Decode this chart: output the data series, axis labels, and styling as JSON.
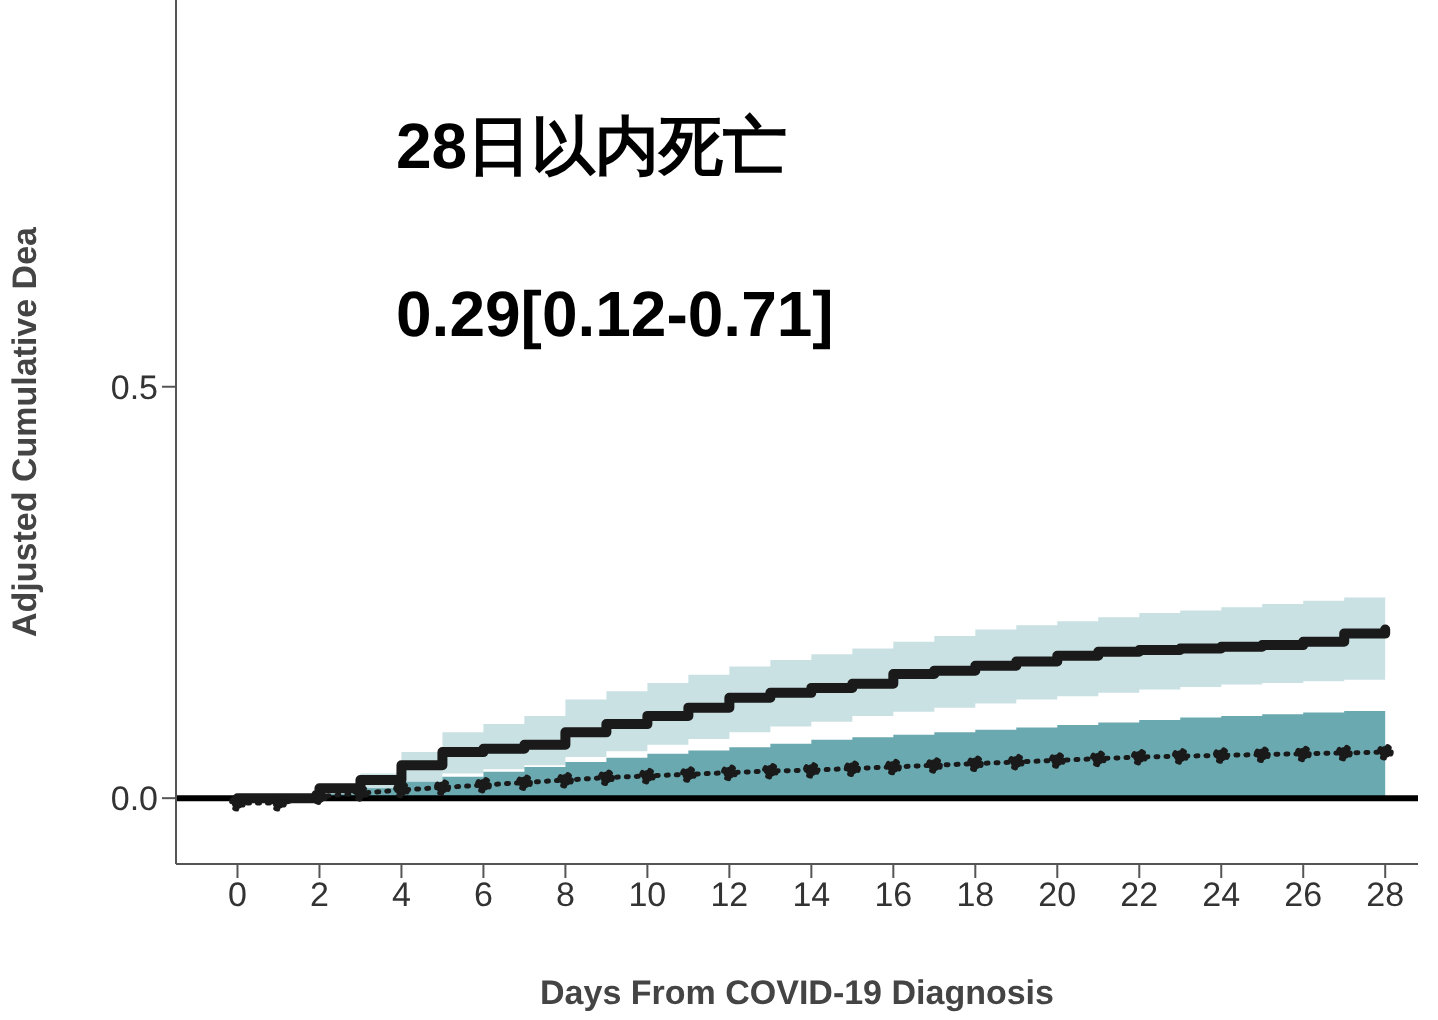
{
  "chart_data": {
    "type": "line",
    "xlabel": "Days From COVID-19 Diagnosis",
    "ylabel": "Adjusted Cumulative Dea",
    "annotations": [
      "28日以内死亡",
      "0.29[0.12-0.71]"
    ],
    "x": [
      0,
      1,
      2,
      3,
      4,
      5,
      6,
      7,
      8,
      9,
      10,
      11,
      12,
      13,
      14,
      15,
      16,
      17,
      18,
      19,
      20,
      21,
      22,
      23,
      24,
      25,
      26,
      27,
      28
    ],
    "series": [
      {
        "type": "step",
        "color": "#1a1a1a",
        "line_style": "solid",
        "marker": "none",
        "values": [
          0,
          0,
          0.012,
          0.022,
          0.04,
          0.056,
          0.06,
          0.065,
          0.08,
          0.09,
          0.1,
          0.11,
          0.122,
          0.128,
          0.134,
          0.139,
          0.151,
          0.155,
          0.161,
          0.166,
          0.173,
          0.178,
          0.18,
          0.182,
          0.184,
          0.186,
          0.19,
          0.2,
          0.205
        ],
        "lower": [
          0,
          0,
          0.005,
          0.01,
          0.02,
          0.03,
          0.035,
          0.04,
          0.05,
          0.057,
          0.065,
          0.072,
          0.08,
          0.087,
          0.093,
          0.1,
          0.105,
          0.11,
          0.115,
          0.12,
          0.124,
          0.128,
          0.132,
          0.135,
          0.138,
          0.14,
          0.142,
          0.144,
          0.146
        ],
        "upper": [
          0,
          0,
          0.015,
          0.03,
          0.056,
          0.08,
          0.09,
          0.1,
          0.12,
          0.13,
          0.14,
          0.15,
          0.16,
          0.168,
          0.175,
          0.182,
          0.19,
          0.197,
          0.205,
          0.21,
          0.215,
          0.22,
          0.225,
          0.228,
          0.232,
          0.236,
          0.24,
          0.244,
          0.246
        ]
      },
      {
        "color": "#1a1a1a",
        "line_style": "dotted",
        "marker": "circle",
        "values": [
          -0.006,
          -0.006,
          0.002,
          0.006,
          0.01,
          0.013,
          0.016,
          0.019,
          0.022,
          0.025,
          0.027,
          0.029,
          0.031,
          0.033,
          0.034,
          0.036,
          0.038,
          0.04,
          0.042,
          0.044,
          0.046,
          0.048,
          0.05,
          0.051,
          0.052,
          0.053,
          0.054,
          0.055,
          0.056
        ],
        "lower": [
          0,
          0,
          0,
          0,
          0,
          0,
          0,
          0,
          0,
          0,
          0,
          0,
          0,
          0,
          0,
          0,
          0,
          0,
          0,
          0,
          0,
          0,
          0,
          0,
          0,
          0,
          0,
          0,
          0
        ],
        "upper": [
          0,
          0,
          0.005,
          0.012,
          0.02,
          0.026,
          0.032,
          0.038,
          0.044,
          0.049,
          0.054,
          0.058,
          0.062,
          0.066,
          0.071,
          0.074,
          0.077,
          0.08,
          0.083,
          0.086,
          0.089,
          0.092,
          0.095,
          0.098,
          0.1,
          0.102,
          0.104,
          0.106,
          0.107
        ]
      }
    ],
    "ref_lines": [
      {
        "axis": "y",
        "value": 0,
        "color": "#000000"
      }
    ],
    "xlim": [
      -1.5,
      28.8
    ],
    "xticks": [
      0,
      2,
      4,
      6,
      8,
      10,
      12,
      14,
      16,
      18,
      20,
      22,
      24,
      26,
      28
    ],
    "ylim": [
      -0.08,
      0.97
    ],
    "yticks": [
      {
        "value": 0,
        "label": "0.0"
      },
      0.5
    ],
    "grid": false,
    "legend": false
  }
}
